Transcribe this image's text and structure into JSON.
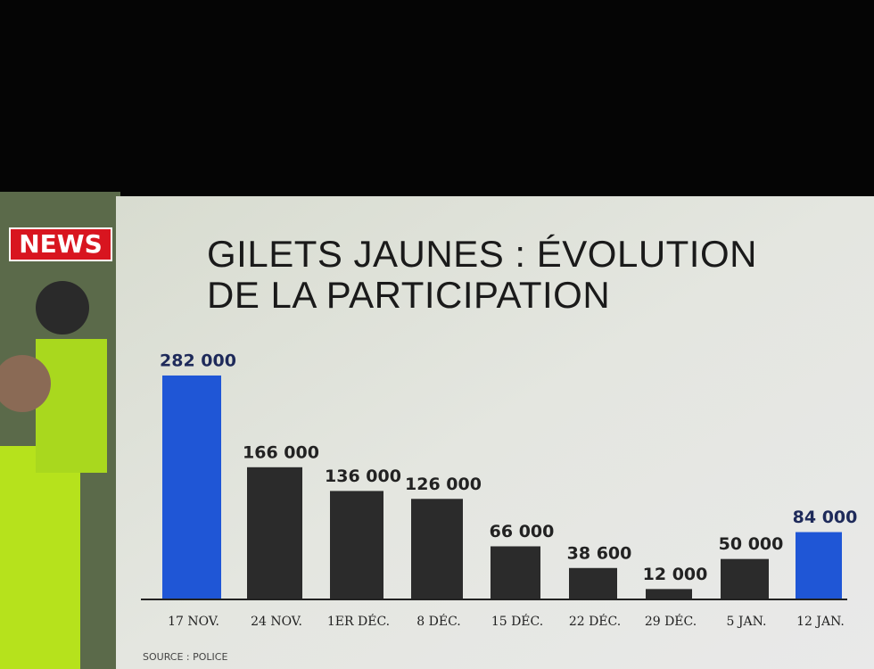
{
  "channel_logo": "NEWS",
  "chart_data": {
    "type": "bar",
    "title": "GILETS JAUNES : ÉVOLUTION DE LA PARTICIPATION",
    "source": "SOURCE : POLICE",
    "categories": [
      "17 NOV.",
      "24 NOV.",
      "1ER DÉC.",
      "8 DÉC.",
      "15 DÉC.",
      "22 DÉC.",
      "29 DÉC.",
      "5 JAN.",
      "12 JAN."
    ],
    "values": [
      282000,
      166000,
      136000,
      126000,
      66000,
      38600,
      12000,
      50000,
      84000
    ],
    "value_labels": [
      "282 000",
      "166 000",
      "136 000",
      "126 000",
      "66 000",
      "38 600",
      "12 000",
      "50 000",
      "84 000"
    ],
    "colors": [
      "#1f56d6",
      "#2b2b2b",
      "#2b2b2b",
      "#2b2b2b",
      "#2b2b2b",
      "#2b2b2b",
      "#2b2b2b",
      "#2b2b2b",
      "#1f56d6"
    ],
    "ylim": [
      0,
      300000
    ]
  }
}
